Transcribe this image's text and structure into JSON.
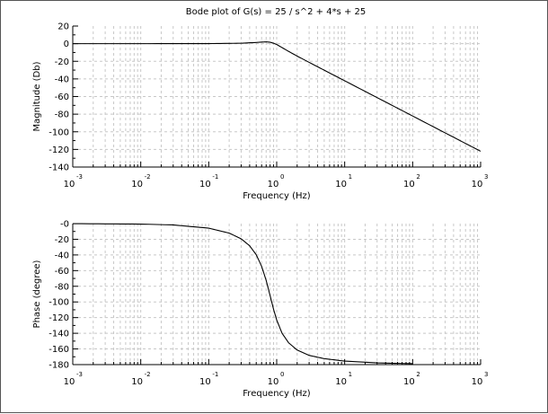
{
  "title": "Bode plot of G(s) = 25 / s^2 + 4*s + 25",
  "chart_data": [
    {
      "type": "line",
      "title": "Bode plot of G(s) = 25 / s^2 + 4*s + 25",
      "xlabel": "Frequency (Hz)",
      "ylabel": "Magnitude (Db)",
      "xscale": "log",
      "xlim": [
        0.001,
        1000
      ],
      "ylim": [
        -140,
        20
      ],
      "x_ticks": [
        {
          "base": "10",
          "exp": "-3"
        },
        {
          "base": "10",
          "exp": "-2"
        },
        {
          "base": "10",
          "exp": "-1"
        },
        {
          "base": "10",
          "exp": "0"
        },
        {
          "base": "10",
          "exp": "1"
        },
        {
          "base": "10",
          "exp": "2"
        },
        {
          "base": "10",
          "exp": "3"
        }
      ],
      "y_ticks": [
        "20",
        "0",
        "-20",
        "-40",
        "-60",
        "-80",
        "-100",
        "-120",
        "-140"
      ],
      "grid": true,
      "color": "#000000",
      "x": [
        0.001,
        0.01,
        0.1,
        0.3,
        0.5,
        0.6,
        0.7,
        0.8,
        0.9,
        1,
        1.5,
        2,
        3,
        5,
        10,
        30,
        100,
        300,
        1000
      ],
      "y": [
        0,
        0,
        0.06,
        0.5,
        1.35,
        1.8,
        2.05,
        1.65,
        0.5,
        -0.94,
        -8.8,
        -14.1,
        -21.2,
        -30.1,
        -42.1,
        -61.2,
        -82.1,
        -101.2,
        -122.1
      ]
    },
    {
      "type": "line",
      "xlabel": "Frequency (Hz)",
      "ylabel": "Phase (degree)",
      "xscale": "log",
      "xlim": [
        0.001,
        1000
      ],
      "ylim": [
        -180,
        0
      ],
      "x_ticks": [
        {
          "base": "10",
          "exp": "-3"
        },
        {
          "base": "10",
          "exp": "-2"
        },
        {
          "base": "10",
          "exp": "-1"
        },
        {
          "base": "10",
          "exp": "0"
        },
        {
          "base": "10",
          "exp": "1"
        },
        {
          "base": "10",
          "exp": "2"
        },
        {
          "base": "10",
          "exp": "3"
        }
      ],
      "y_ticks": [
        "-0",
        "-20",
        "-40",
        "-60",
        "-80",
        "-100",
        "-120",
        "-140",
        "-160",
        "-180"
      ],
      "grid": true,
      "color": "#000000",
      "x": [
        0.001,
        0.01,
        0.03,
        0.1,
        0.2,
        0.3,
        0.4,
        0.5,
        0.6,
        0.7,
        0.8,
        0.9,
        1,
        1.2,
        1.5,
        2,
        3,
        5,
        10,
        30,
        100
      ],
      "y": [
        -0.06,
        -0.6,
        -1.7,
        -5.8,
        -12.1,
        -19.4,
        -28.3,
        -39.7,
        -54.5,
        -72.5,
        -92.0,
        -109.5,
        -123.0,
        -140.0,
        -152.2,
        -161.4,
        -168.2,
        -172.4,
        -175.5,
        -177.8,
        -178.8
      ]
    }
  ]
}
